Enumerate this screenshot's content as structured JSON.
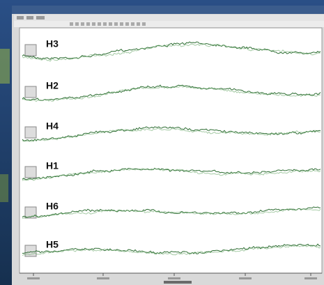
{
  "traces": [
    "H3",
    "H2",
    "H4",
    "H1",
    "H6",
    "H5"
  ]
}
